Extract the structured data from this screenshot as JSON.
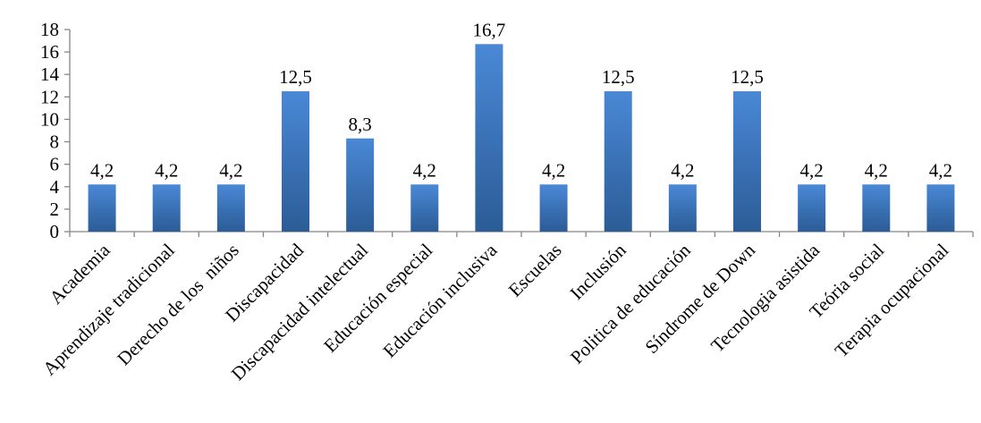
{
  "chart_data": {
    "type": "bar",
    "categories": [
      "Academia",
      "Aprendizaje tradicional",
      "Derecho de los  niños",
      "Discapacidad",
      "Discapacidad intelectual",
      "Educación especial",
      "Educación inclusiva",
      "Escuelas",
      "Inclusión",
      "Politica de educación",
      "Síndrome de Down",
      "Tecnologia asistida",
      "Teória social",
      "Terapia ocupacional"
    ],
    "values": [
      4.2,
      4.2,
      4.2,
      12.5,
      8.3,
      4.2,
      16.7,
      4.2,
      12.5,
      4.2,
      12.5,
      4.2,
      4.2,
      4.2
    ],
    "data_labels": [
      "4,2",
      "4,2",
      "4,2",
      "12,5",
      "8,3",
      "4,2",
      "16,7",
      "4,2",
      "12,5",
      "4,2",
      "12,5",
      "4,2",
      "4,2",
      "4,2"
    ],
    "y_ticks": [
      0,
      2,
      4,
      6,
      8,
      10,
      12,
      14,
      16,
      18
    ],
    "ylim": [
      0,
      18
    ],
    "grid": false,
    "legend": "none",
    "title": "",
    "xlabel": "",
    "ylabel": "",
    "colors": {
      "bar_top": "#4a88d6",
      "bar_bottom": "#2b5c96",
      "axis": "#868686"
    }
  }
}
